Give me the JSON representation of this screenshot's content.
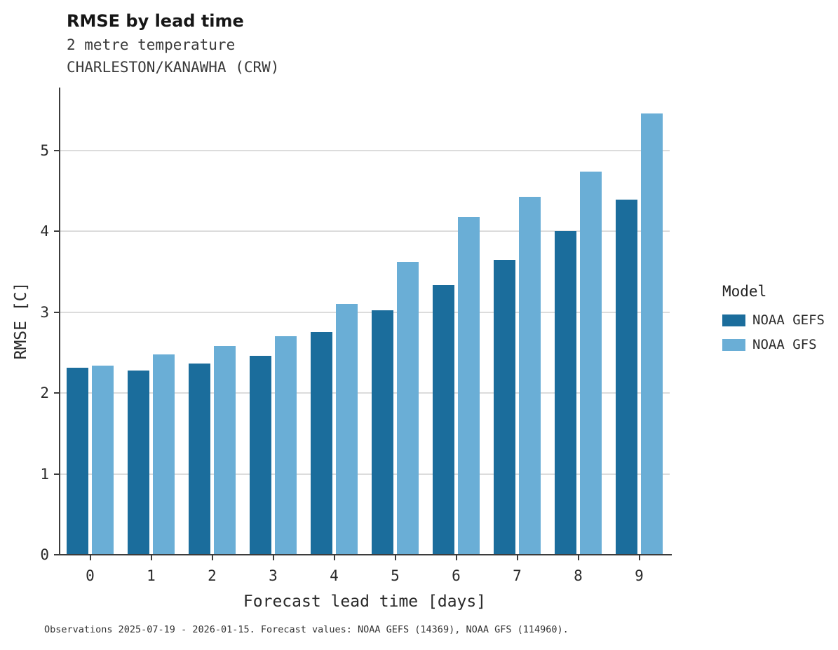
{
  "title": "RMSE by lead time",
  "subtitle_line1": "2 metre temperature",
  "subtitle_line2": "CHARLESTON/KANAWHA (CRW)",
  "caption": "Observations 2025-07-19 - 2026-01-15. Forecast values: NOAA GEFS (14369), NOAA GFS (114960).",
  "legend": {
    "title": "Model",
    "entries": [
      {
        "label": "NOAA GEFS",
        "color": "#1b6d9c"
      },
      {
        "label": "NOAA GFS",
        "color": "#6aaed6"
      }
    ]
  },
  "chart_data": {
    "type": "bar",
    "title": "RMSE by lead time",
    "subtitle": "2 metre temperature CHARLESTON/KANAWHA (CRW)",
    "xlabel": "Forecast lead time [days]",
    "ylabel": "RMSE [C]",
    "categories": [
      "0",
      "1",
      "2",
      "3",
      "4",
      "5",
      "6",
      "7",
      "8",
      "9"
    ],
    "series": [
      {
        "name": "NOAA GEFS",
        "color": "#1b6d9c",
        "values": [
          2.31,
          2.28,
          2.37,
          2.46,
          2.76,
          3.02,
          3.34,
          3.65,
          4.0,
          4.39
        ]
      },
      {
        "name": "NOAA GFS",
        "color": "#6aaed6",
        "values": [
          2.34,
          2.48,
          2.58,
          2.7,
          3.1,
          3.62,
          4.18,
          4.43,
          4.74,
          5.46
        ]
      }
    ],
    "ylim": [
      0,
      5.78
    ],
    "yticks": [
      0,
      1,
      2,
      3,
      4,
      5
    ],
    "grid": true,
    "legend_position": "right"
  }
}
